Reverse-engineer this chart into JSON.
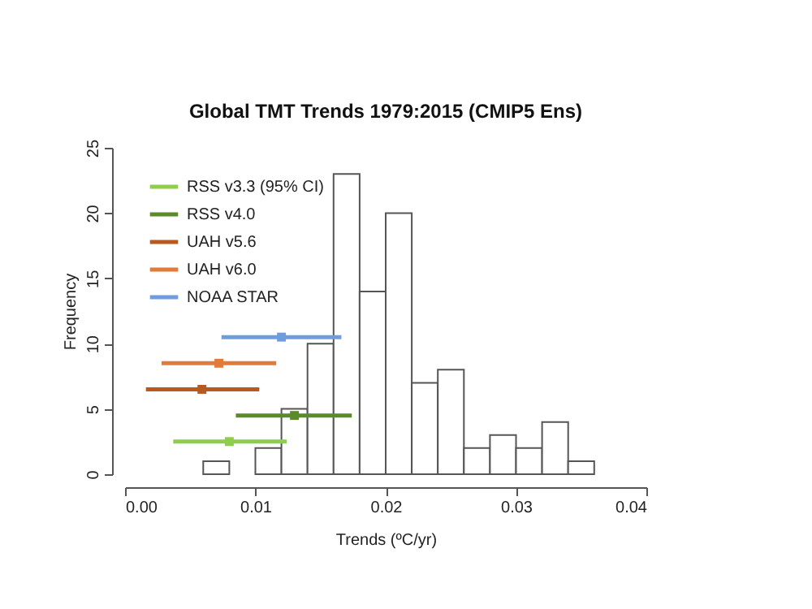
{
  "chart_data": {
    "type": "histogram",
    "title": "Global TMT Trends 1979:2015 (CMIP5 Ens)",
    "xlabel": "Trends (ºC/yr)",
    "ylabel": "Frequency",
    "bins": [
      0.006,
      0.008,
      0.01,
      0.012,
      0.014,
      0.016,
      0.018,
      0.02,
      0.022,
      0.024,
      0.026,
      0.028,
      0.03,
      0.032,
      0.034,
      0.036
    ],
    "values": [
      1,
      0,
      2,
      5,
      10,
      23,
      14,
      20,
      7,
      8,
      2,
      3,
      2,
      4,
      1
    ],
    "color": "#ffffff",
    "xlim": [
      0,
      0.04
    ],
    "xticks": [
      {
        "value": 0,
        "label": "0.00"
      },
      {
        "value": 0.01,
        "label": "0.01"
      },
      {
        "value": 0.02,
        "label": "0.02"
      },
      {
        "value": 0.03,
        "label": "0.03"
      },
      {
        "value": 0.04,
        "label": "0.04"
      }
    ],
    "ylim": [
      0,
      25
    ],
    "yticks": [
      0,
      5,
      10,
      15,
      20,
      25
    ],
    "grid": false,
    "legend": "top left",
    "marker": "square",
    "series": [
      {
        "name": "RSS v3.3 (95% CI)",
        "type": "scatter",
        "color": "#8fce4a",
        "x": [
          0.008
        ],
        "values": [
          2.5
        ],
        "xerrors": [
          [
            0.0037,
            0.0124
          ]
        ]
      },
      {
        "name": "RSS v4.0",
        "type": "scatter",
        "color": "#5a8a2a",
        "x": [
          0.013
        ],
        "values": [
          4.5
        ],
        "xerrors": [
          [
            0.0085,
            0.0174
          ]
        ]
      },
      {
        "name": "UAH v5.6",
        "type": "scatter",
        "color": "#b85a20",
        "x": [
          0.0059
        ],
        "values": [
          6.5
        ],
        "xerrors": [
          [
            0.0016,
            0.0103
          ]
        ]
      },
      {
        "name": "UAH v6.0",
        "type": "scatter",
        "color": "#e07b39",
        "x": [
          0.0072
        ],
        "values": [
          8.5
        ],
        "xerrors": [
          [
            0.0028,
            0.0116
          ]
        ]
      },
      {
        "name": "NOAA STAR",
        "type": "scatter",
        "color": "#6f9be0",
        "x": [
          0.012
        ],
        "values": [
          10.5
        ],
        "xerrors": [
          [
            0.0074,
            0.0166
          ]
        ]
      }
    ]
  }
}
